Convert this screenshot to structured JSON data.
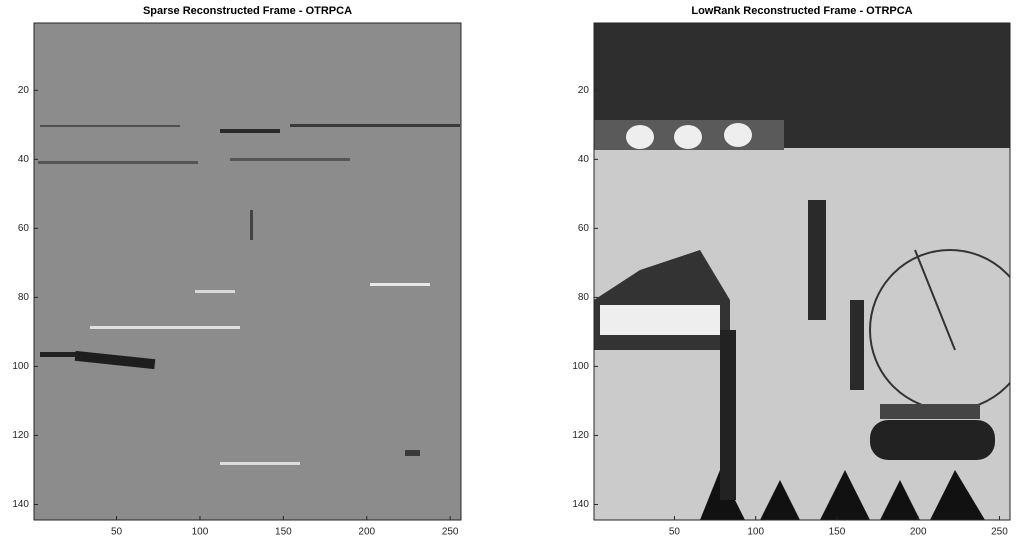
{
  "chart_data": [
    {
      "type": "image",
      "title": "Sparse Reconstructed Frame - OTRPCA",
      "colormap": "gray",
      "xlim": [
        0.5,
        256.5
      ],
      "ylim": [
        144.5,
        0.5
      ],
      "xticks": [
        50,
        100,
        150,
        200,
        250
      ],
      "yticks": [
        20,
        40,
        60,
        80,
        100,
        120,
        140
      ]
    },
    {
      "type": "image",
      "title": "LowRank Reconstructed Frame - OTRPCA",
      "colormap": "gray",
      "xlim": [
        0.5,
        256.5
      ],
      "ylim": [
        144.5,
        0.5
      ],
      "xticks": [
        50,
        100,
        150,
        200,
        250
      ],
      "yticks": [
        20,
        40,
        60,
        80,
        100,
        120,
        140
      ]
    }
  ]
}
